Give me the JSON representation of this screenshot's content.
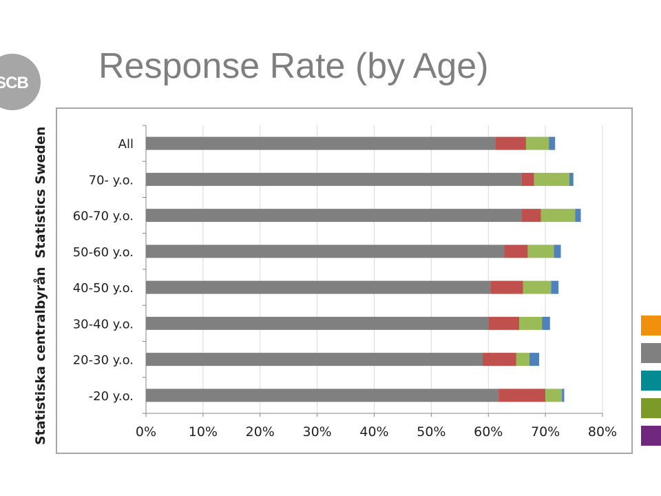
{
  "header": {
    "title": "Response Rate (by Age)"
  },
  "logo": {
    "text": "SCB",
    "color": "#a6a6a6"
  },
  "sidebar": {
    "org_name_en": "Statistics Sweden",
    "org_name_sv": "Statistiska centralbyrån"
  },
  "swatches": [
    {
      "name": "orange",
      "color": "#f0900c"
    },
    {
      "name": "gray",
      "color": "#808080"
    },
    {
      "name": "teal",
      "color": "#048a93"
    },
    {
      "name": "olive",
      "color": "#7b9a28"
    },
    {
      "name": "purple",
      "color": "#70277e"
    }
  ],
  "chart_data": {
    "type": "bar",
    "orientation": "horizontal",
    "stacked": true,
    "title": "",
    "xlabel": "",
    "ylabel": "",
    "xlim": [
      0,
      80
    ],
    "x_ticks": [
      "0%",
      "10%",
      "20%",
      "30%",
      "40%",
      "50%",
      "60%",
      "70%",
      "80%"
    ],
    "legend": "none",
    "grid": "vertical",
    "categories": [
      "All",
      "70- y.o.",
      "60-70 y.o.",
      "50-60 y.o.",
      "40-50 y.o.",
      "30-40 y.o.",
      "20-30 y.o.",
      "-20 y.o."
    ],
    "series": [
      {
        "color": "#808080",
        "values": [
          61.3,
          65.8,
          65.8,
          62.8,
          60.4,
          60.0,
          59.0,
          61.8
        ]
      },
      {
        "color": "#c0504d",
        "values": [
          5.3,
          2.2,
          3.4,
          4.1,
          5.7,
          5.4,
          5.9,
          8.2
        ]
      },
      {
        "color": "#9bbb59",
        "values": [
          4.0,
          6.2,
          6.0,
          4.6,
          4.9,
          4.0,
          2.3,
          2.9
        ]
      },
      {
        "color": "#4f81bd",
        "values": [
          1.1,
          0.7,
          1.0,
          1.2,
          1.3,
          1.4,
          1.7,
          0.4
        ]
      }
    ]
  }
}
